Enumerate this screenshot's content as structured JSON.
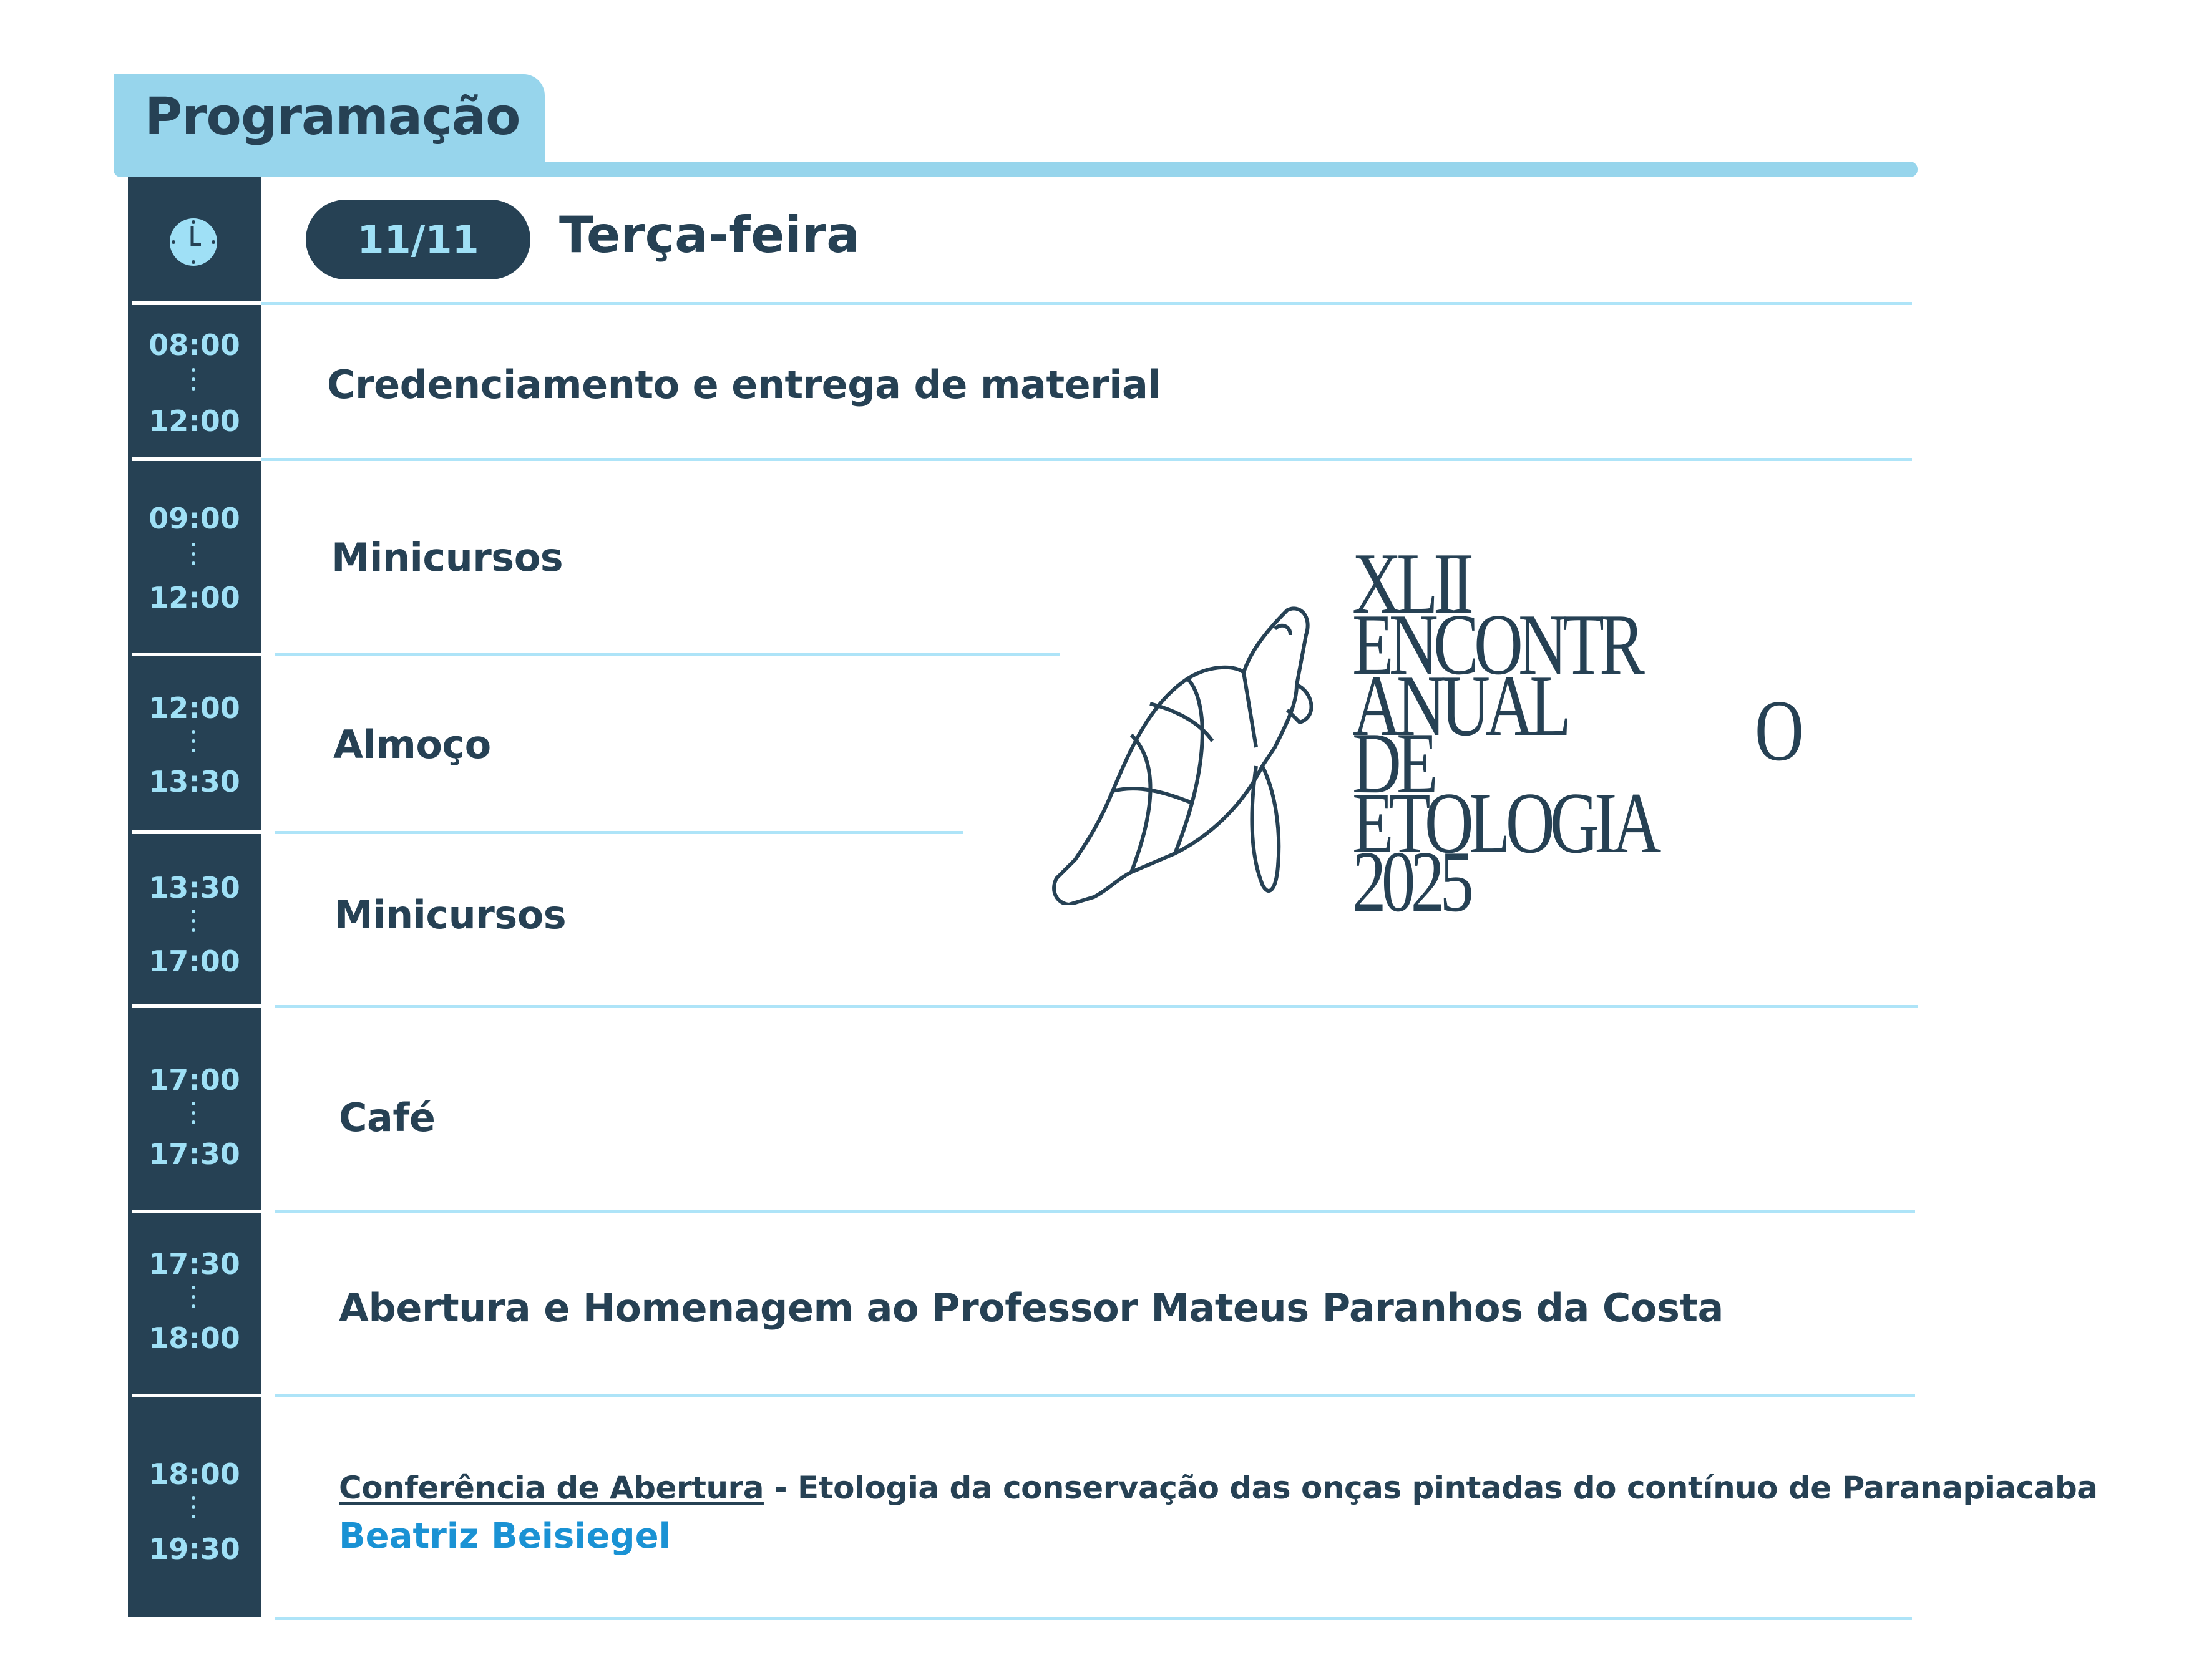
{
  "header": {
    "title": "Programação"
  },
  "day": {
    "date": "11/11",
    "weekday": "Terça-feira",
    "icon": "clock-icon"
  },
  "schedule": [
    {
      "start": "08:00",
      "end": "12:00",
      "title": "Credenciamento e entrega de material"
    },
    {
      "start": "09:00",
      "end": "12:00",
      "title": "Minicursos"
    },
    {
      "start": "12:00",
      "end": "13:30",
      "title": "Almoço"
    },
    {
      "start": "13:30",
      "end": "17:00",
      "title": "Minicursos"
    },
    {
      "start": "17:00",
      "end": "17:30",
      "title": "Café"
    },
    {
      "start": "17:30",
      "end": "18:00",
      "title": "Abertura e Homenagem ao Professor Mateus Paranhos da Costa"
    },
    {
      "start": "18:00",
      "end": "19:30",
      "label": "Conferência de Abertura",
      "title": " - Etologia da conservação das onças pintadas do contínuo de Paranapiacaba",
      "speaker": "Beatriz Beisiegel"
    }
  ],
  "logo": {
    "lines": [
      "XLII",
      "ENCONTR",
      "ANUAL",
      "DE",
      "ETOLOGIA",
      "2025"
    ],
    "extra": "O",
    "icon": "sea-turtle-icon"
  },
  "colors": {
    "dark": "#264154",
    "light_blue": "#97d5ec",
    "time_text": "#9fe0f6",
    "speaker": "#1a92d4"
  }
}
